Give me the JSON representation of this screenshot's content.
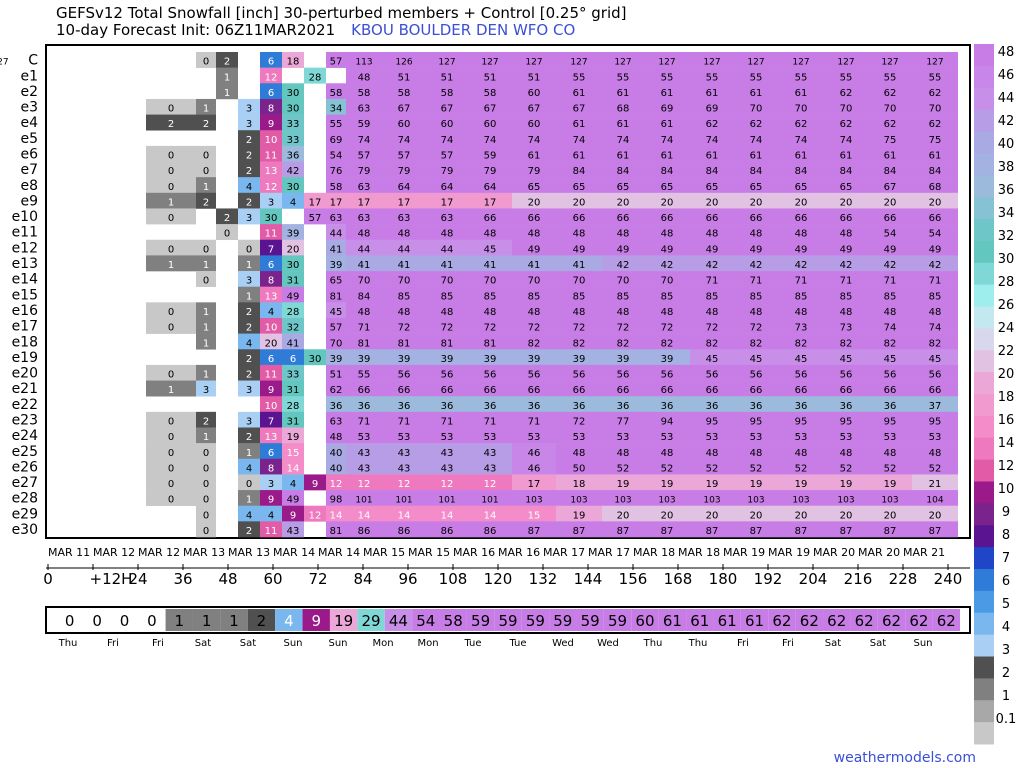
{
  "title_line1": "GEFSv12 Total Snowfall [inch]  30-perturbed members + Control [0.25° grid]",
  "title_line2": "10-day Forecast Init: 06Z11MAR2021",
  "station": "KBOU  BOULDER DEN WFO CO",
  "site": "weathermodels.com",
  "chart_data": {
    "type": "heatmap",
    "title": "GEFSv12 Total Snowfall [inch]  30-perturbed members + Control [0.25° grid]",
    "subtitle": "10-day Forecast Init: 06Z11MAR2021",
    "ylabels": [
      "C",
      "e1",
      "e2",
      "e3",
      "e4",
      "e5",
      "e6",
      "e7",
      "e8",
      "e9",
      "e10",
      "e11",
      "e12",
      "e13",
      "e14",
      "e15",
      "e16",
      "e17",
      "e18",
      "e19",
      "e20",
      "e21",
      "e22",
      "e23",
      "e24",
      "e25",
      "e26",
      "e27",
      "e28",
      "e29",
      "e30"
    ],
    "date_labels": [
      "MAR 11",
      "MAR 12",
      "MAR 12",
      "MAR 13",
      "MAR 13",
      "MAR 14",
      "MAR 14",
      "MAR 15",
      "MAR 15",
      "MAR 16",
      "MAR 16",
      "MAR 17",
      "MAR 17",
      "MAR 18",
      "MAR 18",
      "MAR 19",
      "MAR 19",
      "MAR 20",
      "MAR 20",
      "MAR 21"
    ],
    "hour_labels": [
      "0",
      "+12H",
      "24",
      "36",
      "48",
      "60",
      "72",
      "84",
      "96",
      "108",
      "120",
      "132",
      "144",
      "156",
      "168",
      "180",
      "192",
      "204",
      "216",
      "228",
      "240"
    ],
    "day_labels": [
      "Thu",
      "Fri",
      "Fri",
      "Sat",
      "Sat",
      "Sun",
      "Sun",
      "Mon",
      "Mon",
      "Tue",
      "Tue",
      "Wed",
      "Wed",
      "Thu",
      "Thu",
      "Fri",
      "Fri",
      "Sat",
      "Sat",
      "Sun"
    ],
    "rows": [
      [
        "",
        "",
        "",
        0,
        2,
        "",
        6,
        18,
        "",
        57,
        113,
        126,
        127,
        127,
        127,
        127,
        127,
        127,
        127,
        127,
        127,
        127,
        127,
        127,
        127
      ],
      [
        "",
        "",
        "",
        "",
        1,
        "",
        12,
        "",
        28,
        "",
        48,
        51,
        51,
        51,
        51,
        55,
        55,
        55,
        55,
        55,
        55,
        55,
        55,
        55
      ],
      [
        "",
        "",
        "",
        "",
        1,
        "",
        6,
        30,
        "",
        58,
        58,
        58,
        58,
        58,
        60,
        61,
        61,
        61,
        61,
        61,
        61,
        62,
        62,
        62
      ],
      [
        "",
        "",
        0,
        1,
        "",
        3,
        8,
        30,
        "",
        34,
        63,
        67,
        67,
        67,
        67,
        67,
        68,
        69,
        69,
        70,
        70,
        70,
        70,
        70
      ],
      [
        "",
        "",
        2,
        2,
        "",
        3,
        9,
        33,
        "",
        55,
        59,
        60,
        60,
        60,
        60,
        61,
        61,
        61,
        62,
        62,
        62,
        62,
        62,
        62
      ],
      [
        "",
        "",
        "",
        "",
        "",
        2,
        10,
        33,
        "",
        69,
        74,
        74,
        74,
        74,
        74,
        74,
        74,
        74,
        74,
        74,
        74,
        74,
        75,
        75
      ],
      [
        "",
        "",
        0,
        0,
        "",
        2,
        11,
        36,
        "",
        54,
        57,
        57,
        57,
        59,
        61,
        61,
        61,
        61,
        61,
        61,
        61,
        61,
        61,
        61
      ],
      [
        "",
        "",
        0,
        0,
        "",
        2,
        13,
        42,
        "",
        76,
        79,
        79,
        79,
        79,
        79,
        84,
        84,
        84,
        84,
        84,
        84,
        84,
        84,
        84
      ],
      [
        "",
        "",
        0,
        1,
        "",
        4,
        12,
        30,
        "",
        58,
        63,
        64,
        64,
        64,
        65,
        65,
        65,
        65,
        65,
        65,
        65,
        65,
        67,
        68
      ],
      [
        "",
        "",
        1,
        2,
        "",
        2,
        3,
        4,
        17,
        17,
        17,
        17,
        17,
        17,
        20,
        20,
        20,
        20,
        20,
        20,
        20,
        20,
        20,
        20
      ],
      [
        "",
        "",
        0,
        "",
        2,
        3,
        30,
        "",
        57,
        63,
        63,
        63,
        63,
        66,
        66,
        66,
        66,
        66,
        66,
        66,
        66,
        66,
        66,
        66
      ],
      [
        "",
        "",
        "",
        "",
        0,
        "",
        11,
        39,
        "",
        44,
        48,
        48,
        48,
        48,
        48,
        48,
        48,
        48,
        48,
        48,
        48,
        48,
        54,
        54
      ],
      [
        "",
        "",
        0,
        0,
        "",
        0,
        7,
        20,
        "",
        41,
        44,
        44,
        44,
        45,
        49,
        49,
        49,
        49,
        49,
        49,
        49,
        49,
        49,
        49
      ],
      [
        "",
        "",
        1,
        1,
        "",
        1,
        6,
        30,
        "",
        39,
        41,
        41,
        41,
        41,
        41,
        41,
        42,
        42,
        42,
        42,
        42,
        42,
        42,
        42
      ],
      [
        "",
        "",
        "",
        0,
        "",
        3,
        8,
        31,
        "",
        65,
        70,
        70,
        70,
        70,
        70,
        70,
        70,
        70,
        71,
        71,
        71,
        71,
        71,
        71
      ],
      [
        "",
        "",
        "",
        "",
        "",
        1,
        13,
        49,
        "",
        81,
        84,
        85,
        85,
        85,
        85,
        85,
        85,
        85,
        85,
        85,
        85,
        85,
        85,
        85
      ],
      [
        "",
        "",
        0,
        1,
        "",
        2,
        4,
        28,
        "",
        45,
        48,
        48,
        48,
        48,
        48,
        48,
        48,
        48,
        48,
        48,
        48,
        48,
        48,
        48
      ],
      [
        "",
        "",
        0,
        1,
        "",
        2,
        10,
        32,
        "",
        57,
        71,
        72,
        72,
        72,
        72,
        72,
        72,
        72,
        72,
        72,
        73,
        73,
        74,
        74
      ],
      [
        "",
        "",
        "",
        1,
        "",
        4,
        20,
        41,
        "",
        70,
        81,
        81,
        81,
        81,
        82,
        82,
        82,
        82,
        82,
        82,
        82,
        82,
        82,
        82
      ],
      [
        "",
        "",
        "",
        "",
        "",
        2,
        6,
        6,
        30,
        39,
        39,
        39,
        39,
        39,
        39,
        39,
        39,
        39,
        45,
        45,
        45,
        45,
        45,
        45
      ],
      [
        "",
        "",
        0,
        1,
        "",
        2,
        11,
        33,
        "",
        51,
        55,
        56,
        56,
        56,
        56,
        56,
        56,
        56,
        56,
        56,
        56,
        56,
        56,
        56
      ],
      [
        "",
        "",
        1,
        3,
        "",
        3,
        9,
        31,
        "",
        62,
        66,
        66,
        66,
        66,
        66,
        66,
        66,
        66,
        66,
        66,
        66,
        66,
        66,
        66
      ],
      [
        "",
        "",
        "",
        "",
        "",
        "",
        10,
        28,
        "",
        36,
        36,
        36,
        36,
        36,
        36,
        36,
        36,
        36,
        36,
        36,
        36,
        36,
        36,
        37
      ],
      [
        "",
        "",
        0,
        2,
        "",
        3,
        7,
        31,
        "",
        63,
        71,
        71,
        71,
        71,
        71,
        72,
        77,
        94,
        95,
        95,
        95,
        95,
        95,
        95
      ],
      [
        "",
        "",
        0,
        1,
        "",
        2,
        13,
        19,
        "",
        48,
        53,
        53,
        53,
        53,
        53,
        53,
        53,
        53,
        53,
        53,
        53,
        53,
        53,
        53
      ],
      [
        "",
        "",
        0,
        0,
        "",
        1,
        6,
        15,
        "",
        40,
        43,
        43,
        43,
        43,
        46,
        48,
        48,
        48,
        48,
        48,
        48,
        48,
        48,
        48
      ],
      [
        "",
        "",
        0,
        0,
        "",
        4,
        8,
        14,
        "",
        40,
        43,
        43,
        43,
        43,
        46,
        50,
        52,
        52,
        52,
        52,
        52,
        52,
        52,
        52
      ],
      [
        "",
        "",
        0,
        0,
        "",
        0,
        3,
        4,
        9,
        12,
        12,
        12,
        12,
        12,
        17,
        18,
        19,
        19,
        19,
        19,
        19,
        19,
        19,
        21
      ],
      [
        "",
        "",
        0,
        0,
        "",
        1,
        9,
        49,
        "",
        98,
        101,
        101,
        101,
        101,
        103,
        103,
        103,
        103,
        103,
        103,
        103,
        103,
        103,
        104
      ],
      [
        "",
        "",
        "",
        0,
        "",
        4,
        4,
        9,
        12,
        14,
        14,
        14,
        14,
        14,
        15,
        19,
        20,
        20,
        20,
        20,
        20,
        20,
        20,
        20
      ],
      [
        "",
        "",
        "",
        0,
        "",
        2,
        11,
        43,
        "",
        81,
        86,
        86,
        86,
        86,
        87,
        87,
        87,
        87,
        87,
        87,
        87,
        87,
        87,
        87
      ]
    ],
    "mean_row": [
      0,
      0,
      0,
      0,
      1,
      1,
      1,
      2,
      4,
      9,
      19,
      29,
      44,
      54,
      58,
      59,
      59,
      59,
      59,
      59,
      59,
      60,
      61,
      61,
      61,
      61,
      62,
      62,
      62,
      62,
      62,
      62,
      62
    ],
    "colorbar_labels": [
      "48",
      "46",
      "44",
      "42",
      "40",
      "38",
      "36",
      "34",
      "32",
      "30",
      "28",
      "26",
      "24",
      "22",
      "20",
      "18",
      "16",
      "14",
      "12",
      "10",
      "9",
      "8",
      "7",
      "6",
      "5",
      "4",
      "3",
      "2",
      "1",
      "0.1"
    ],
    "colorbar_colors": [
      "#c87de6",
      "#c886e8",
      "#c88fe9",
      "#b79ce6",
      "#a9a9e3",
      "#a3b2e0",
      "#9bbadc",
      "#86c2d3",
      "#6fc6c8",
      "#64c7bf",
      "#7fd8d5",
      "#9deeed",
      "#c4e8ef",
      "#d8d8ec",
      "#e1c2e3",
      "#eba7d8",
      "#f19ad0",
      "#f38cc8",
      "#ef79be",
      "#e15ba6",
      "#9a1a8a",
      "#7b238c",
      "#5a1492",
      "#2046c8",
      "#2f7cd8",
      "#4b9ae5",
      "#7ab7ee",
      "#a9d0f4",
      "#505050",
      "#808080",
      "#a8a8a8",
      "#c8c8c8"
    ]
  }
}
